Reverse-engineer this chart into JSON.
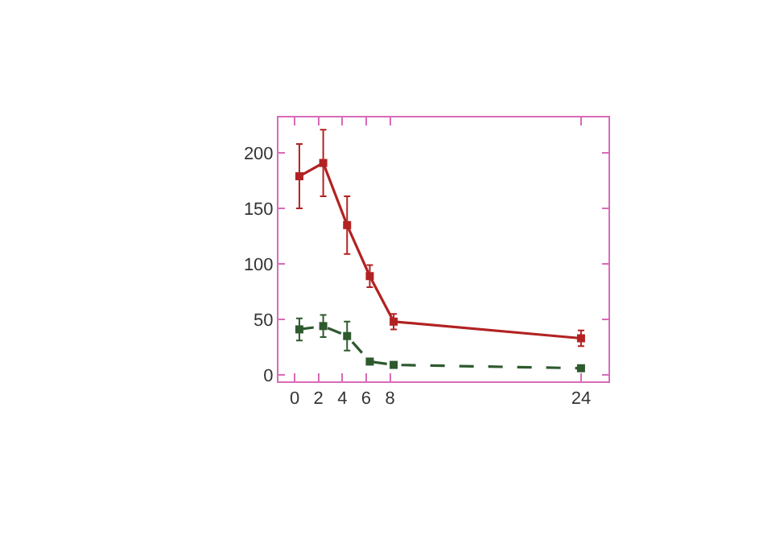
{
  "chart_data": {
    "type": "line",
    "xlim": [
      -1.35,
      26.3
    ],
    "xticks": [
      0,
      2,
      4,
      6,
      8,
      24
    ],
    "ylim": [
      -5.8,
      232
    ],
    "yticks": [
      0,
      50,
      100,
      150,
      200
    ],
    "legend": false,
    "marker": "square",
    "series": [
      {
        "color": "#b22222",
        "line_style": "solid",
        "x": [
          0.4,
          2.4,
          4.4,
          6.3,
          8.3,
          24
        ],
        "values": [
          179,
          191,
          135,
          89,
          48,
          33
        ],
        "errors": [
          29,
          30,
          26,
          10,
          7,
          7
        ]
      },
      {
        "color": "#2e5a2e",
        "line_style": "dashed",
        "x": [
          0.4,
          2.4,
          4.4,
          6.3,
          8.3,
          24
        ],
        "values": [
          41,
          44,
          35,
          12,
          9,
          6
        ],
        "errors": [
          10,
          10,
          13,
          null,
          null,
          null
        ]
      }
    ]
  }
}
